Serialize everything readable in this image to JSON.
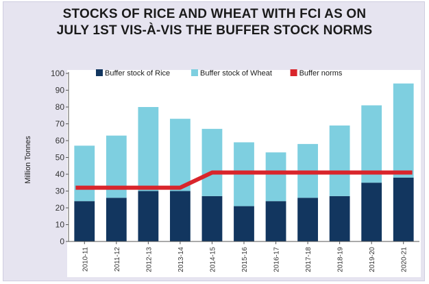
{
  "chart_data": {
    "type": "bar",
    "title_lines": [
      "STOCKS OF RICE AND WHEAT WITH FCI AS ON",
      "JULY 1ST VIS-À-VIS THE BUFFER STOCK NORMS"
    ],
    "ylabel": "Million Tonnes",
    "ylim": [
      0,
      100
    ],
    "yticks": [
      0,
      10,
      20,
      30,
      40,
      50,
      60,
      70,
      80,
      90,
      100
    ],
    "categories": [
      "2010-11",
      "2011-12",
      "2012-13",
      "2013-14",
      "2014-15",
      "2015-16",
      "2016-17",
      "2017-18",
      "2018-19",
      "2019-20",
      "2020-21"
    ],
    "stacked": true,
    "legend_position": "top",
    "grid": false,
    "series": [
      {
        "name": "Buffer stock of Rice",
        "color": "#12365f",
        "values": [
          24,
          26,
          30,
          30,
          27,
          21,
          24,
          26,
          27,
          35,
          38
        ]
      },
      {
        "name": "Buffer stock of Wheat",
        "color": "#7ecfe0",
        "values": [
          33,
          37,
          50,
          43,
          40,
          38,
          29,
          32,
          42,
          46,
          56
        ]
      },
      {
        "name": "Buffer norms",
        "type": "line",
        "color": "#d9252b",
        "values": [
          32,
          32,
          32,
          32,
          41,
          41,
          41,
          41,
          41,
          41,
          41
        ]
      }
    ]
  }
}
